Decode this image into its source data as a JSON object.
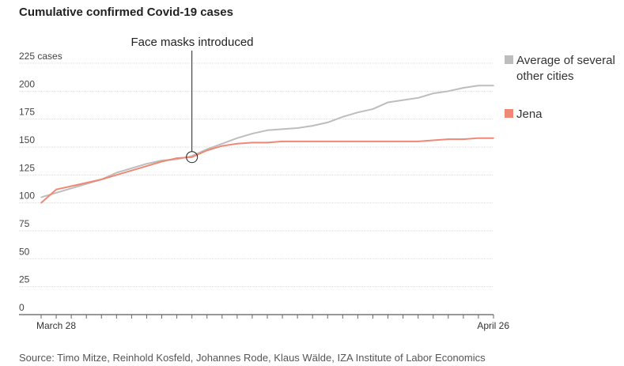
{
  "chart_data": {
    "type": "line",
    "title": "Cumulative confirmed Covid-19 cases",
    "ylabel_unit": "cases",
    "yticks": [
      0,
      25,
      50,
      75,
      100,
      125,
      150,
      175,
      200,
      225
    ],
    "ylim": [
      0,
      225
    ],
    "x_count": 31,
    "x_labels": [
      {
        "index": 0,
        "label": "March 28"
      },
      {
        "index": 30,
        "label": "April 26"
      }
    ],
    "grid": true,
    "legend_position": "right",
    "series": [
      {
        "name": "Average of several other cities",
        "color": "#bdbdbd",
        "values": [
          105,
          109,
          113,
          117,
          121,
          127,
          131,
          135,
          138,
          139,
          142,
          148,
          153,
          158,
          162,
          165,
          166,
          167,
          169,
          172,
          177,
          181,
          184,
          190,
          192,
          194,
          198,
          200,
          203,
          205,
          205
        ]
      },
      {
        "name": "Jena",
        "color": "#ef8875",
        "values": [
          100,
          112,
          115,
          118,
          121,
          125,
          129,
          133,
          137,
          140,
          141,
          147,
          151,
          153,
          154,
          154,
          155,
          155,
          155,
          155,
          155,
          155,
          155,
          155,
          155,
          155,
          156,
          157,
          157,
          158,
          158
        ]
      }
    ],
    "annotation": {
      "label": "Face masks introduced",
      "x_index": 10,
      "value": 141
    }
  },
  "source": "Source: Timo Mitze, Reinhold Kosfeld, Johannes Rode, Klaus Wälde, IZA Institute of Labor Economics"
}
